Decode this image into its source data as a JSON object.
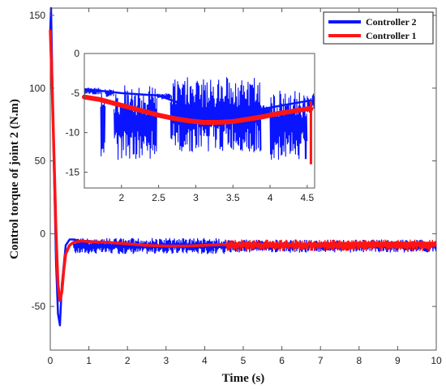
{
  "chart_data": {
    "type": "line",
    "title": "",
    "xlabel": "Time (s)",
    "ylabel": "Control torque of joint 2 (N.m)",
    "xlim": [
      0,
      10
    ],
    "ylim": [
      -80,
      155
    ],
    "xticks": [
      {
        "value": 0,
        "label": "0"
      },
      {
        "value": 1,
        "label": "1"
      },
      {
        "value": 2,
        "label": "2"
      },
      {
        "value": 3,
        "label": "3"
      },
      {
        "value": 4,
        "label": "4"
      },
      {
        "value": 5,
        "label": "5"
      },
      {
        "value": 6,
        "label": "6"
      },
      {
        "value": 7,
        "label": "7"
      },
      {
        "value": 8,
        "label": "8"
      },
      {
        "value": 9,
        "label": "9"
      },
      {
        "value": 10,
        "label": "10"
      }
    ],
    "yticks": [
      {
        "value": -50,
        "label": "-50"
      },
      {
        "value": 0,
        "label": "0"
      },
      {
        "value": 50,
        "label": "50"
      },
      {
        "value": 100,
        "label": "100"
      },
      {
        "value": 150,
        "label": "150"
      }
    ],
    "grid": false,
    "legend_position": "top-right",
    "legend": [
      {
        "label": "Controller 2",
        "color": "#0a14ff"
      },
      {
        "label": "Controller 1",
        "color": "#ff1414"
      }
    ],
    "series": [
      {
        "name": "Controller 2",
        "color": "#0a14ff",
        "x": [
          0,
          0.02,
          0.05,
          0.1,
          0.15,
          0.2,
          0.25,
          0.3,
          0.4,
          0.5,
          0.6,
          0.8,
          1,
          1.5,
          2,
          2.5,
          3,
          3.5,
          4,
          4.5,
          5,
          6,
          7,
          8,
          9,
          10
        ],
        "y": [
          140,
          155,
          110,
          40,
          -20,
          -55,
          -63,
          -35,
          -8,
          -4,
          -4,
          -5,
          -5,
          -6,
          -7,
          -8,
          -8.5,
          -8.5,
          -8,
          -7,
          -7,
          -7,
          -7,
          -7,
          -7,
          -7
        ],
        "chatter": [
          {
            "from": 0.6,
            "to": 4.55,
            "low": -14,
            "high": -3
          },
          {
            "from": 4.55,
            "to": 10,
            "low": -13,
            "high": -4
          }
        ]
      },
      {
        "name": "Controller 1",
        "color": "#ff1414",
        "x": [
          0,
          0.05,
          0.1,
          0.15,
          0.2,
          0.25,
          0.3,
          0.35,
          0.4,
          0.5,
          0.6,
          0.8,
          1,
          1.5,
          2,
          2.5,
          3,
          3.5,
          4,
          4.5,
          5,
          6,
          7,
          8,
          9,
          10
        ],
        "y": [
          140,
          100,
          50,
          0,
          -35,
          -46,
          -40,
          -25,
          -14,
          -8,
          -6,
          -5,
          -5.5,
          -6,
          -7,
          -8,
          -8.5,
          -8.5,
          -8,
          -7.5,
          -7.5,
          -7.5,
          -7,
          -6.5,
          -6.5,
          -6.5
        ],
        "chatter": [
          {
            "from": 4.55,
            "to": 10,
            "low": -12,
            "high": -4
          }
        ]
      }
    ],
    "inset": {
      "xlim": [
        1.5,
        4.6
      ],
      "ylim": [
        -17,
        0
      ],
      "xticks": [
        {
          "value": 2,
          "label": "2"
        },
        {
          "value": 2.5,
          "label": "2.5"
        },
        {
          "value": 3,
          "label": "3"
        },
        {
          "value": 3.5,
          "label": "3.5"
        },
        {
          "value": 4,
          "label": "4"
        },
        {
          "value": 4.5,
          "label": "4.5"
        }
      ],
      "yticks": [
        {
          "value": 0,
          "label": "0"
        },
        {
          "value": -5,
          "label": "-5"
        },
        {
          "value": -10,
          "label": "-10"
        },
        {
          "value": -15,
          "label": "-15"
        }
      ],
      "series": [
        {
          "name": "Controller 2",
          "color": "#0a14ff",
          "x": [
            1.5,
            1.8,
            2.0,
            2.3,
            2.5,
            2.7,
            3.0,
            3.3,
            3.6,
            3.9,
            4.2,
            4.5,
            4.6
          ],
          "y": [
            -4.5,
            -4.8,
            -5.0,
            -5.2,
            -5.3,
            -6.0,
            -7.0,
            -7.5,
            -7.5,
            -7.0,
            -6.5,
            -6.0,
            -6.0
          ],
          "chatter_segments": [
            {
              "from": 1.5,
              "to": 1.72,
              "low": -5.2,
              "high": -4.3
            },
            {
              "from": 1.72,
              "to": 1.78,
              "low": -13,
              "high": -4
            },
            {
              "from": 1.78,
              "to": 1.9,
              "low": -5.5,
              "high": -4.4
            },
            {
              "from": 1.9,
              "to": 2.48,
              "low": -13.5,
              "high": -4
            },
            {
              "from": 2.48,
              "to": 2.66,
              "low": -5.8,
              "high": -5
            },
            {
              "from": 2.66,
              "to": 3.88,
              "low": -12.5,
              "high": -3
            },
            {
              "from": 3.88,
              "to": 4.0,
              "low": -8,
              "high": -6.5
            },
            {
              "from": 4.0,
              "to": 4.5,
              "low": -13.5,
              "high": -4.5
            },
            {
              "from": 4.5,
              "to": 4.6,
              "low": -7.5,
              "high": -5
            }
          ]
        },
        {
          "name": "Controller 1",
          "color": "#ff1414",
          "x": [
            1.5,
            1.7,
            1.9,
            2.1,
            2.3,
            2.5,
            2.7,
            2.9,
            3.1,
            3.3,
            3.5,
            3.7,
            3.9,
            4.1,
            4.3,
            4.5,
            4.55
          ],
          "y": [
            -5.5,
            -5.8,
            -6.3,
            -6.8,
            -7.3,
            -7.8,
            -8.2,
            -8.5,
            -8.7,
            -8.7,
            -8.6,
            -8.3,
            -8.0,
            -7.6,
            -7.3,
            -7.0,
            -7.0
          ],
          "spike": {
            "x": 4.55,
            "low": -14,
            "high": -6
          }
        }
      ]
    }
  }
}
